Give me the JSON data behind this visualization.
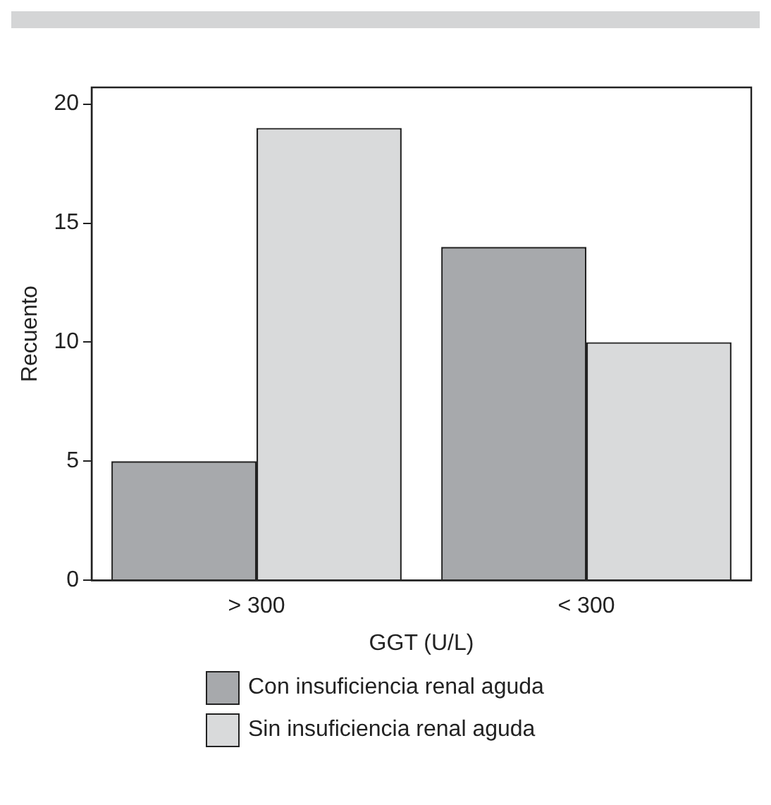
{
  "chart_data": {
    "type": "bar",
    "xlabel": "GGT (U/L)",
    "ylabel": "Recuento",
    "categories": [
      "> 300",
      "< 300"
    ],
    "series": [
      {
        "name": "Con insuficiencia renal aguda",
        "color": "#a7a9ac",
        "values": [
          5,
          14
        ]
      },
      {
        "name": "Sin insuficiencia renal aguda",
        "color": "#d9dadb",
        "values": [
          19,
          10
        ]
      }
    ],
    "ylim": [
      0,
      20.7
    ],
    "yticks": [
      0,
      5,
      10,
      15,
      20
    ],
    "grid": false,
    "legend": "bottom"
  }
}
